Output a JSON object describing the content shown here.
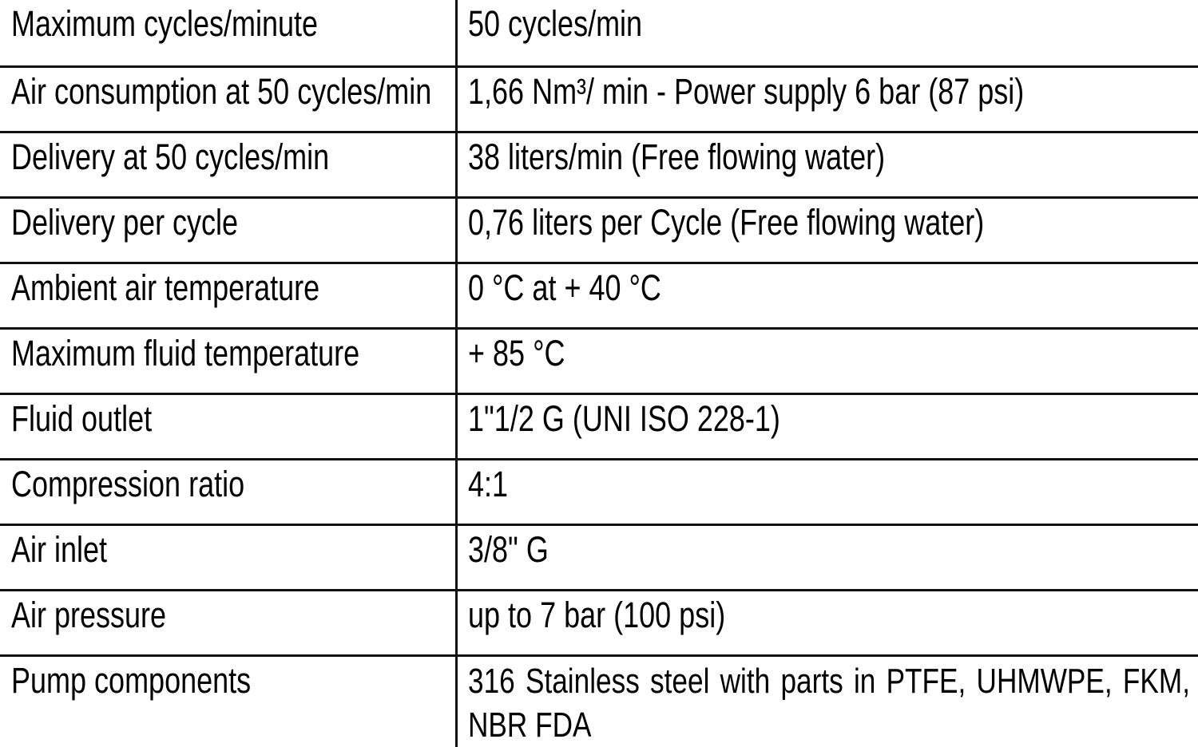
{
  "table": {
    "rows": [
      {
        "label": "Maximum cycles/minute",
        "value": "50 cycles/min"
      },
      {
        "label": "Air consumption at 50 cycles/min",
        "value": "1,66 Nm³/ min - Power supply 6 bar (87 psi)"
      },
      {
        "label": "Delivery at 50 cycles/min",
        "value": "38 liters/min (Free flowing water)"
      },
      {
        "label": "Delivery per cycle",
        "value": "0,76 liters per Cycle (Free flowing water)"
      },
      {
        "label": "Ambient air temperature",
        "value": "0 °C at + 40 °C"
      },
      {
        "label": "Maximum fluid temperature",
        "value": "+ 85 °C"
      },
      {
        "label": "Fluid outlet",
        "value": "1\"1/2 G (UNI ISO 228-1)"
      },
      {
        "label": "Compression ratio",
        "value": "4:1"
      },
      {
        "label": "Air inlet",
        "value": "3/8\" G"
      },
      {
        "label": "Air pressure",
        "value": "up to 7 bar (100 psi)"
      },
      {
        "label": "Pump components",
        "value": "316 Stainless steel with parts in PTFE, UHMWPE, FKM, NBR FDA"
      }
    ]
  },
  "colors": {
    "text": "#000000",
    "border": "#111111",
    "background": "#ffffff"
  }
}
